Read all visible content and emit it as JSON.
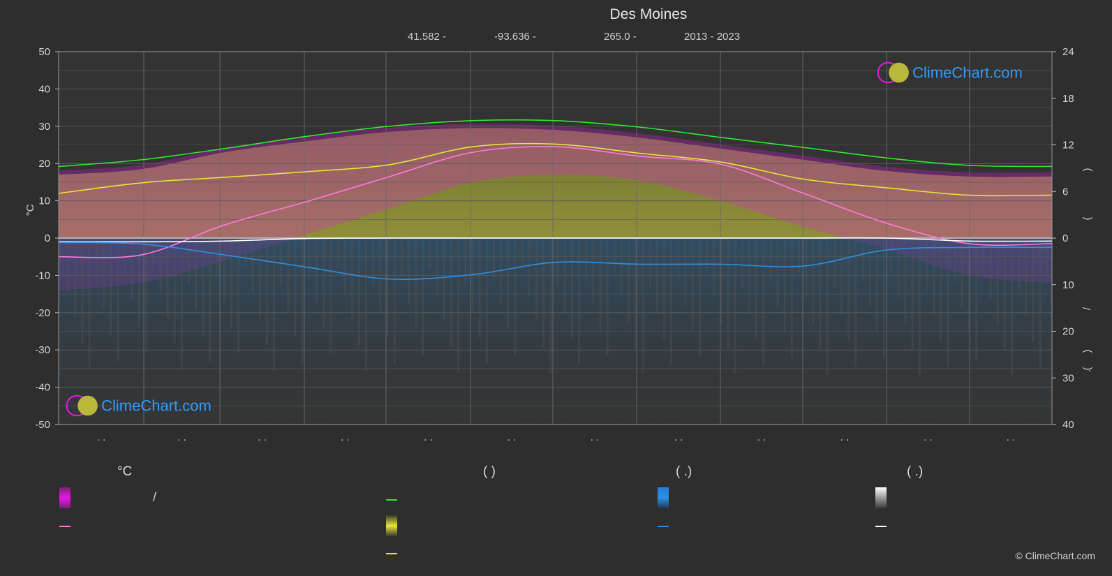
{
  "title": "Des Moines",
  "meta": {
    "lat": "41.582 -",
    "lon": "-93.636 -",
    "elev": "265.0 -",
    "years": "2013 - 2023"
  },
  "logo_text": "ClimeChart.com",
  "copyright": "© ClimeChart.com",
  "legend": {
    "temp_header": "°C",
    "sun_header": "(          )",
    "rain_header": "(   .)",
    "snow_header": "(   .)",
    "slash": "/"
  },
  "colors": {
    "background": "#2e2e2e",
    "daylight": "#33e633",
    "sunshine": "#e6e63a",
    "temp_max": "#ff7adf",
    "temp_min": "#ffffff",
    "precip": "#2f8fe0",
    "temp_fill": "#e619e6",
    "sun_fill": "#a5a53a"
  },
  "chart_data": {
    "type": "area",
    "title": "Des Moines",
    "ylabel_left": "°C",
    "left_axis": {
      "ylim": [
        -50,
        50
      ],
      "ticks": [
        50,
        40,
        30,
        20,
        10,
        0,
        -10,
        -20,
        -30,
        -40,
        -50
      ]
    },
    "right_axis_top": {
      "ylim": [
        0,
        24
      ],
      "ticks": [
        24,
        18,
        12,
        6,
        0
      ]
    },
    "right_axis_bottom": {
      "ylim": [
        0,
        40
      ],
      "ticks": [
        10,
        20,
        30,
        40
      ]
    },
    "right_label_glyphs": [
      ")",
      "(",
      "/",
      ")",
      "(",
      "."
    ],
    "month_labels": [
      ". .",
      ". .",
      ". .",
      ". .",
      ". .",
      ". .",
      ". .",
      ". .",
      ". .",
      ". .",
      ". .",
      ". ."
    ],
    "grid": true,
    "x": [
      0,
      1,
      2,
      3,
      4,
      5,
      6,
      7,
      8,
      9,
      10,
      11,
      12
    ],
    "series": [
      {
        "key": "daylight",
        "values": [
          19.2,
          21.0,
          24.0,
          27.3,
          30.0,
          31.5,
          31.5,
          29.8,
          27.0,
          24.3,
          21.5,
          19.5,
          19.2
        ]
      },
      {
        "key": "sunshine",
        "values": [
          12.0,
          14.8,
          16.3,
          17.8,
          19.7,
          24.5,
          25.2,
          22.8,
          20.4,
          15.8,
          13.5,
          11.5,
          11.5
        ]
      },
      {
        "key": "temp_max",
        "values": [
          -5.0,
          -4.5,
          3.5,
          9.8,
          16.5,
          23.0,
          24.5,
          22.0,
          19.8,
          12.0,
          4.0,
          -1.5,
          -1.5
        ]
      },
      {
        "key": "temp_min",
        "values": [
          -1.0,
          -1.0,
          -0.8,
          -0.1,
          0.0,
          0.0,
          0.0,
          0.0,
          0.0,
          0.0,
          0.0,
          -0.8,
          -0.8
        ]
      },
      {
        "key": "precip",
        "values": [
          -1.2,
          -1.6,
          -4.5,
          -7.8,
          -11.0,
          -9.8,
          -6.5,
          -7.0,
          -7.0,
          -7.5,
          -3.2,
          -2.5,
          -2.5
        ]
      }
    ],
    "fill_top_values": [
      17.0,
      18.5,
      23.0,
      26.0,
      28.5,
      29.5,
      29.0,
      27.0,
      24.0,
      21.0,
      18.0,
      16.5,
      16.5
    ],
    "fill_bottom_values": [
      -14.0,
      -12.0,
      -6.0,
      1.0,
      8.0,
      15.0,
      17.0,
      15.5,
      10.0,
      3.0,
      -3.0,
      -10.0,
      -12.0
    ]
  }
}
